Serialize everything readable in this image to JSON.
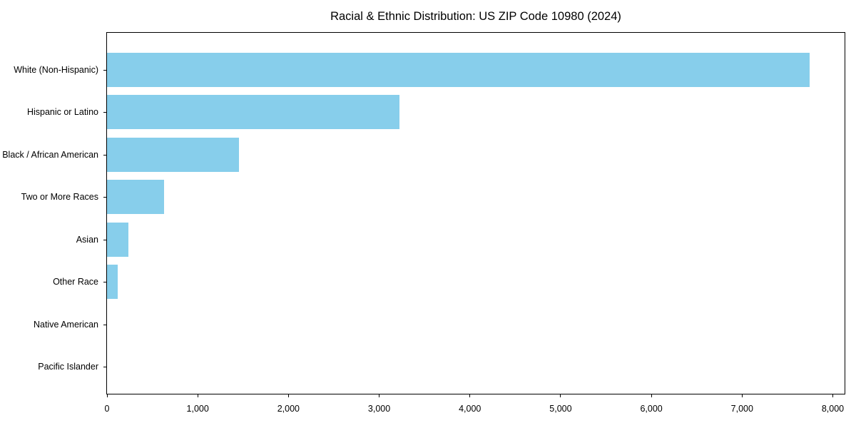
{
  "chart_data": {
    "type": "bar",
    "orientation": "horizontal",
    "title": "Racial & Ethnic Distribution: US ZIP Code 10980 (2024)",
    "categories": [
      "White (Non-Hispanic)",
      "Hispanic or Latino",
      "Black / African American",
      "Two or More Races",
      "Asian",
      "Other Race",
      "Native American",
      "Pacific Islander"
    ],
    "values": [
      7742,
      3227,
      1452,
      628,
      235,
      118,
      0,
      0
    ],
    "xlabel": "",
    "ylabel": "",
    "xlim": [
      0,
      8130
    ],
    "x_ticks": [
      0,
      1000,
      2000,
      3000,
      4000,
      5000,
      6000,
      7000,
      8000
    ],
    "x_tick_labels": [
      "0",
      "1,000",
      "2,000",
      "3,000",
      "4,000",
      "5,000",
      "6,000",
      "7,000",
      "8,000"
    ],
    "bar_color": "#87CEEB",
    "axis_color": "#000000",
    "text_color": "#000000",
    "grid": false,
    "legend": "none"
  }
}
